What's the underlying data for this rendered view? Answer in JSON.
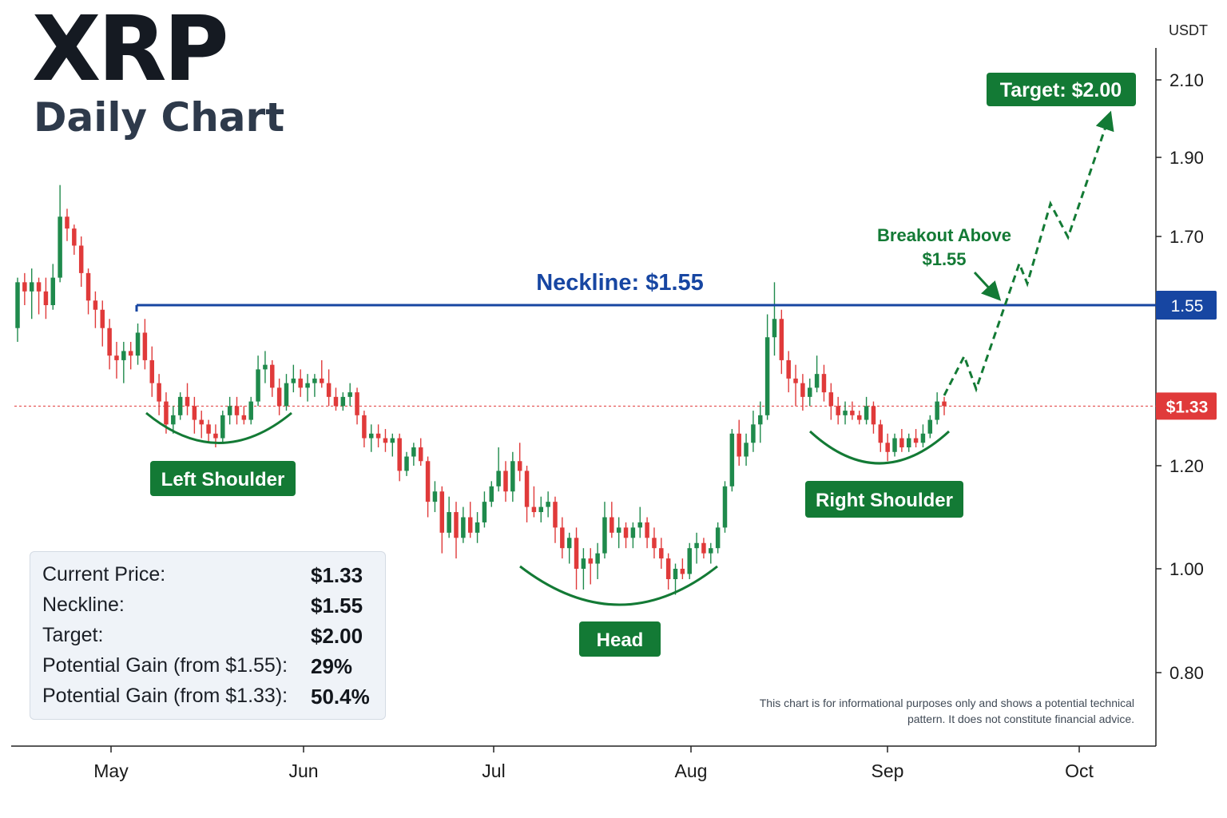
{
  "header": {
    "title": "XRP",
    "subtitle": "Daily Chart"
  },
  "info_panel": {
    "rows": [
      {
        "label": "Current Price:",
        "value": "$1.33"
      },
      {
        "label": "Neckline:",
        "value": "$1.55"
      },
      {
        "label": "Target:",
        "value": "$2.00"
      },
      {
        "label": "Potential Gain (from $1.55):",
        "value": "29%"
      },
      {
        "label": "Potential Gain (from $1.33):",
        "value": "50.4%"
      }
    ]
  },
  "disclaimer": "This chart is for informational purposes only and shows a potential technical pattern. It does not constitute financial advice.",
  "colors": {
    "bull": "#1f8a4c",
    "bear": "#e03a3a",
    "neckline": "#1746a2",
    "annotation_green": "#137a35",
    "current_price": "#e03a3a",
    "axis": "#222222"
  },
  "chart_data": {
    "type": "candlestick",
    "y_axis_unit": "USDT",
    "y_ticks": [
      0.8,
      1.0,
      1.2,
      1.7,
      1.9,
      2.1
    ],
    "y_tick_labels": [
      "0.80",
      "1.00",
      "1.20",
      "1.70",
      "1.90",
      "2.10"
    ],
    "x_ticks": [
      "May",
      "Jun",
      "Jul",
      "Aug",
      "Sep",
      "Oct"
    ],
    "ylim": [
      0.65,
      2.2
    ],
    "neckline": {
      "value": 1.55,
      "label": "Neckline: $1.55",
      "tag": "1.55"
    },
    "current_price": {
      "value": 1.33,
      "tag": "$1.33"
    },
    "target": {
      "value": 2.0,
      "label": "Target: $2.00"
    },
    "breakout_label": [
      "Breakout Above",
      "$1.55"
    ],
    "pattern_labels": [
      "Left Shoulder",
      "Head",
      "Right Shoulder"
    ],
    "candles": [
      {
        "o": 1.5,
        "h": 1.61,
        "l": 1.47,
        "c": 1.6
      },
      {
        "o": 1.6,
        "h": 1.62,
        "l": 1.55,
        "c": 1.58
      },
      {
        "o": 1.58,
        "h": 1.63,
        "l": 1.52,
        "c": 1.6
      },
      {
        "o": 1.6,
        "h": 1.61,
        "l": 1.53,
        "c": 1.58
      },
      {
        "o": 1.58,
        "h": 1.61,
        "l": 1.52,
        "c": 1.55
      },
      {
        "o": 1.55,
        "h": 1.64,
        "l": 1.54,
        "c": 1.61
      },
      {
        "o": 1.61,
        "h": 1.83,
        "l": 1.6,
        "c": 1.75
      },
      {
        "o": 1.75,
        "h": 1.77,
        "l": 1.69,
        "c": 1.72
      },
      {
        "o": 1.72,
        "h": 1.73,
        "l": 1.66,
        "c": 1.68
      },
      {
        "o": 1.68,
        "h": 1.7,
        "l": 1.59,
        "c": 1.62
      },
      {
        "o": 1.62,
        "h": 1.63,
        "l": 1.53,
        "c": 1.56
      },
      {
        "o": 1.56,
        "h": 1.58,
        "l": 1.5,
        "c": 1.54
      },
      {
        "o": 1.54,
        "h": 1.56,
        "l": 1.46,
        "c": 1.5
      },
      {
        "o": 1.5,
        "h": 1.52,
        "l": 1.41,
        "c": 1.44
      },
      {
        "o": 1.44,
        "h": 1.47,
        "l": 1.39,
        "c": 1.43
      },
      {
        "o": 1.43,
        "h": 1.47,
        "l": 1.38,
        "c": 1.45
      },
      {
        "o": 1.45,
        "h": 1.47,
        "l": 1.41,
        "c": 1.44
      },
      {
        "o": 1.44,
        "h": 1.51,
        "l": 1.42,
        "c": 1.49
      },
      {
        "o": 1.49,
        "h": 1.52,
        "l": 1.41,
        "c": 1.43
      },
      {
        "o": 1.43,
        "h": 1.46,
        "l": 1.35,
        "c": 1.38
      },
      {
        "o": 1.38,
        "h": 1.4,
        "l": 1.31,
        "c": 1.34
      },
      {
        "o": 1.34,
        "h": 1.36,
        "l": 1.27,
        "c": 1.29
      },
      {
        "o": 1.29,
        "h": 1.33,
        "l": 1.27,
        "c": 1.31
      },
      {
        "o": 1.31,
        "h": 1.36,
        "l": 1.3,
        "c": 1.35
      },
      {
        "o": 1.35,
        "h": 1.38,
        "l": 1.31,
        "c": 1.33
      },
      {
        "o": 1.33,
        "h": 1.35,
        "l": 1.27,
        "c": 1.3
      },
      {
        "o": 1.3,
        "h": 1.32,
        "l": 1.26,
        "c": 1.29
      },
      {
        "o": 1.29,
        "h": 1.3,
        "l": 1.25,
        "c": 1.27
      },
      {
        "o": 1.27,
        "h": 1.29,
        "l": 1.24,
        "c": 1.26
      },
      {
        "o": 1.26,
        "h": 1.32,
        "l": 1.25,
        "c": 1.31
      },
      {
        "o": 1.31,
        "h": 1.35,
        "l": 1.29,
        "c": 1.33
      },
      {
        "o": 1.33,
        "h": 1.35,
        "l": 1.29,
        "c": 1.31
      },
      {
        "o": 1.31,
        "h": 1.33,
        "l": 1.29,
        "c": 1.3
      },
      {
        "o": 1.3,
        "h": 1.35,
        "l": 1.29,
        "c": 1.34
      },
      {
        "o": 1.34,
        "h": 1.44,
        "l": 1.33,
        "c": 1.41
      },
      {
        "o": 1.41,
        "h": 1.45,
        "l": 1.38,
        "c": 1.42
      },
      {
        "o": 1.42,
        "h": 1.43,
        "l": 1.35,
        "c": 1.37
      },
      {
        "o": 1.37,
        "h": 1.39,
        "l": 1.31,
        "c": 1.33
      },
      {
        "o": 1.33,
        "h": 1.4,
        "l": 1.32,
        "c": 1.38
      },
      {
        "o": 1.38,
        "h": 1.42,
        "l": 1.36,
        "c": 1.39
      },
      {
        "o": 1.39,
        "h": 1.41,
        "l": 1.35,
        "c": 1.37
      },
      {
        "o": 1.37,
        "h": 1.4,
        "l": 1.34,
        "c": 1.38
      },
      {
        "o": 1.38,
        "h": 1.4,
        "l": 1.35,
        "c": 1.39
      },
      {
        "o": 1.39,
        "h": 1.43,
        "l": 1.37,
        "c": 1.38
      },
      {
        "o": 1.38,
        "h": 1.41,
        "l": 1.33,
        "c": 1.35
      },
      {
        "o": 1.35,
        "h": 1.37,
        "l": 1.32,
        "c": 1.33
      },
      {
        "o": 1.33,
        "h": 1.36,
        "l": 1.32,
        "c": 1.35
      },
      {
        "o": 1.35,
        "h": 1.38,
        "l": 1.33,
        "c": 1.36
      },
      {
        "o": 1.36,
        "h": 1.37,
        "l": 1.29,
        "c": 1.31
      },
      {
        "o": 1.31,
        "h": 1.32,
        "l": 1.24,
        "c": 1.26
      },
      {
        "o": 1.26,
        "h": 1.29,
        "l": 1.23,
        "c": 1.27
      },
      {
        "o": 1.27,
        "h": 1.29,
        "l": 1.24,
        "c": 1.26
      },
      {
        "o": 1.26,
        "h": 1.28,
        "l": 1.23,
        "c": 1.25
      },
      {
        "o": 1.25,
        "h": 1.27,
        "l": 1.22,
        "c": 1.26
      },
      {
        "o": 1.26,
        "h": 1.27,
        "l": 1.17,
        "c": 1.19
      },
      {
        "o": 1.19,
        "h": 1.23,
        "l": 1.18,
        "c": 1.22
      },
      {
        "o": 1.22,
        "h": 1.25,
        "l": 1.2,
        "c": 1.24
      },
      {
        "o": 1.24,
        "h": 1.26,
        "l": 1.2,
        "c": 1.21
      },
      {
        "o": 1.21,
        "h": 1.22,
        "l": 1.1,
        "c": 1.13
      },
      {
        "o": 1.13,
        "h": 1.17,
        "l": 1.11,
        "c": 1.15
      },
      {
        "o": 1.15,
        "h": 1.16,
        "l": 1.03,
        "c": 1.07
      },
      {
        "o": 1.07,
        "h": 1.14,
        "l": 1.06,
        "c": 1.11
      },
      {
        "o": 1.11,
        "h": 1.13,
        "l": 1.02,
        "c": 1.06
      },
      {
        "o": 1.06,
        "h": 1.12,
        "l": 1.05,
        "c": 1.1
      },
      {
        "o": 1.1,
        "h": 1.13,
        "l": 1.06,
        "c": 1.07
      },
      {
        "o": 1.07,
        "h": 1.11,
        "l": 1.05,
        "c": 1.09
      },
      {
        "o": 1.09,
        "h": 1.15,
        "l": 1.08,
        "c": 1.13
      },
      {
        "o": 1.13,
        "h": 1.17,
        "l": 1.12,
        "c": 1.16
      },
      {
        "o": 1.16,
        "h": 1.24,
        "l": 1.15,
        "c": 1.19
      },
      {
        "o": 1.19,
        "h": 1.21,
        "l": 1.13,
        "c": 1.15
      },
      {
        "o": 1.15,
        "h": 1.23,
        "l": 1.13,
        "c": 1.21
      },
      {
        "o": 1.21,
        "h": 1.25,
        "l": 1.17,
        "c": 1.19
      },
      {
        "o": 1.19,
        "h": 1.2,
        "l": 1.09,
        "c": 1.12
      },
      {
        "o": 1.12,
        "h": 1.16,
        "l": 1.1,
        "c": 1.11
      },
      {
        "o": 1.11,
        "h": 1.14,
        "l": 1.09,
        "c": 1.12
      },
      {
        "o": 1.12,
        "h": 1.15,
        "l": 1.1,
        "c": 1.13
      },
      {
        "o": 1.13,
        "h": 1.14,
        "l": 1.05,
        "c": 1.08
      },
      {
        "o": 1.08,
        "h": 1.1,
        "l": 1.02,
        "c": 1.04
      },
      {
        "o": 1.04,
        "h": 1.07,
        "l": 1.01,
        "c": 1.06
      },
      {
        "o": 1.06,
        "h": 1.08,
        "l": 0.96,
        "c": 1.0
      },
      {
        "o": 1.0,
        "h": 1.04,
        "l": 0.96,
        "c": 1.02
      },
      {
        "o": 1.02,
        "h": 1.04,
        "l": 0.97,
        "c": 1.01
      },
      {
        "o": 1.01,
        "h": 1.05,
        "l": 0.98,
        "c": 1.03
      },
      {
        "o": 1.03,
        "h": 1.13,
        "l": 1.02,
        "c": 1.1
      },
      {
        "o": 1.1,
        "h": 1.13,
        "l": 1.06,
        "c": 1.07
      },
      {
        "o": 1.07,
        "h": 1.1,
        "l": 1.04,
        "c": 1.08
      },
      {
        "o": 1.08,
        "h": 1.09,
        "l": 1.04,
        "c": 1.06
      },
      {
        "o": 1.06,
        "h": 1.09,
        "l": 1.04,
        "c": 1.08
      },
      {
        "o": 1.08,
        "h": 1.12,
        "l": 1.06,
        "c": 1.09
      },
      {
        "o": 1.09,
        "h": 1.1,
        "l": 1.04,
        "c": 1.06
      },
      {
        "o": 1.06,
        "h": 1.08,
        "l": 1.02,
        "c": 1.04
      },
      {
        "o": 1.04,
        "h": 1.06,
        "l": 1.0,
        "c": 1.02
      },
      {
        "o": 1.02,
        "h": 1.03,
        "l": 0.96,
        "c": 0.98
      },
      {
        "o": 0.98,
        "h": 1.01,
        "l": 0.95,
        "c": 1.0
      },
      {
        "o": 1.0,
        "h": 1.02,
        "l": 0.98,
        "c": 0.99
      },
      {
        "o": 0.99,
        "h": 1.05,
        "l": 0.98,
        "c": 1.04
      },
      {
        "o": 1.04,
        "h": 1.07,
        "l": 1.01,
        "c": 1.05
      },
      {
        "o": 1.05,
        "h": 1.06,
        "l": 1.02,
        "c": 1.03
      },
      {
        "o": 1.03,
        "h": 1.05,
        "l": 1.01,
        "c": 1.04
      },
      {
        "o": 1.04,
        "h": 1.09,
        "l": 1.03,
        "c": 1.08
      },
      {
        "o": 1.08,
        "h": 1.17,
        "l": 1.07,
        "c": 1.16
      },
      {
        "o": 1.16,
        "h": 1.28,
        "l": 1.15,
        "c": 1.27
      },
      {
        "o": 1.27,
        "h": 1.3,
        "l": 1.2,
        "c": 1.22
      },
      {
        "o": 1.22,
        "h": 1.27,
        "l": 1.2,
        "c": 1.25
      },
      {
        "o": 1.25,
        "h": 1.32,
        "l": 1.23,
        "c": 1.29
      },
      {
        "o": 1.29,
        "h": 1.34,
        "l": 1.25,
        "c": 1.31
      },
      {
        "o": 1.31,
        "h": 1.53,
        "l": 1.3,
        "c": 1.48
      },
      {
        "o": 1.48,
        "h": 1.6,
        "l": 1.44,
        "c": 1.52
      },
      {
        "o": 1.52,
        "h": 1.54,
        "l": 1.4,
        "c": 1.43
      },
      {
        "o": 1.43,
        "h": 1.45,
        "l": 1.36,
        "c": 1.39
      },
      {
        "o": 1.39,
        "h": 1.42,
        "l": 1.33,
        "c": 1.38
      },
      {
        "o": 1.38,
        "h": 1.4,
        "l": 1.32,
        "c": 1.35
      },
      {
        "o": 1.35,
        "h": 1.39,
        "l": 1.33,
        "c": 1.37
      },
      {
        "o": 1.37,
        "h": 1.44,
        "l": 1.36,
        "c": 1.4
      },
      {
        "o": 1.4,
        "h": 1.42,
        "l": 1.34,
        "c": 1.36
      },
      {
        "o": 1.36,
        "h": 1.38,
        "l": 1.3,
        "c": 1.33
      },
      {
        "o": 1.33,
        "h": 1.35,
        "l": 1.29,
        "c": 1.31
      },
      {
        "o": 1.31,
        "h": 1.34,
        "l": 1.29,
        "c": 1.32
      },
      {
        "o": 1.32,
        "h": 1.34,
        "l": 1.3,
        "c": 1.31
      },
      {
        "o": 1.31,
        "h": 1.32,
        "l": 1.29,
        "c": 1.3
      },
      {
        "o": 1.3,
        "h": 1.35,
        "l": 1.29,
        "c": 1.33
      },
      {
        "o": 1.33,
        "h": 1.34,
        "l": 1.27,
        "c": 1.29
      },
      {
        "o": 1.29,
        "h": 1.3,
        "l": 1.23,
        "c": 1.25
      },
      {
        "o": 1.25,
        "h": 1.27,
        "l": 1.21,
        "c": 1.23
      },
      {
        "o": 1.23,
        "h": 1.27,
        "l": 1.22,
        "c": 1.26
      },
      {
        "o": 1.26,
        "h": 1.28,
        "l": 1.23,
        "c": 1.24
      },
      {
        "o": 1.24,
        "h": 1.27,
        "l": 1.23,
        "c": 1.26
      },
      {
        "o": 1.26,
        "h": 1.28,
        "l": 1.24,
        "c": 1.25
      },
      {
        "o": 1.25,
        "h": 1.29,
        "l": 1.24,
        "c": 1.27
      },
      {
        "o": 1.27,
        "h": 1.31,
        "l": 1.26,
        "c": 1.3
      },
      {
        "o": 1.3,
        "h": 1.36,
        "l": 1.29,
        "c": 1.34
      },
      {
        "o": 1.34,
        "h": 1.35,
        "l": 1.31,
        "c": 1.33
      }
    ]
  }
}
